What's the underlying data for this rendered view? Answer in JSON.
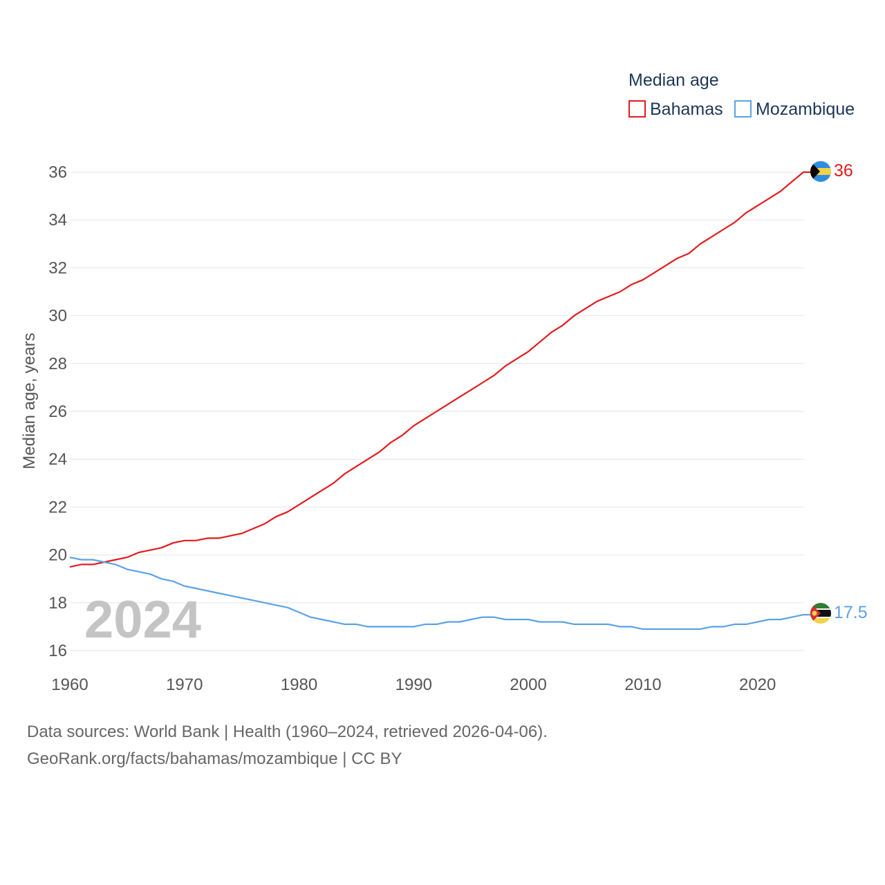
{
  "chart_data": {
    "type": "line",
    "title": "",
    "legend_title": "Median age",
    "legend_position": "top-right",
    "ylabel": "Median age, years",
    "xlabel": "",
    "xlim": [
      1960,
      2024
    ],
    "ylim": [
      16,
      36
    ],
    "x_ticks": [
      1960,
      1970,
      1980,
      1990,
      2000,
      2010,
      2020
    ],
    "y_ticks": [
      16,
      18,
      20,
      22,
      24,
      26,
      28,
      30,
      32,
      34,
      36
    ],
    "grid": true,
    "year_label": "2024",
    "x": [
      1960,
      1961,
      1962,
      1963,
      1964,
      1965,
      1966,
      1967,
      1968,
      1969,
      1970,
      1971,
      1972,
      1973,
      1974,
      1975,
      1976,
      1977,
      1978,
      1979,
      1980,
      1981,
      1982,
      1983,
      1984,
      1985,
      1986,
      1987,
      1988,
      1989,
      1990,
      1991,
      1992,
      1993,
      1994,
      1995,
      1996,
      1997,
      1998,
      1999,
      2000,
      2001,
      2002,
      2003,
      2004,
      2005,
      2006,
      2007,
      2008,
      2009,
      2010,
      2011,
      2012,
      2013,
      2014,
      2015,
      2016,
      2017,
      2018,
      2019,
      2020,
      2021,
      2022,
      2023,
      2024
    ],
    "series": [
      {
        "name": "Bahamas",
        "color": "#e41a1c",
        "end_label": "36",
        "flag": "bahamas-flag",
        "values": [
          19.5,
          19.6,
          19.6,
          19.7,
          19.8,
          19.9,
          20.1,
          20.2,
          20.3,
          20.5,
          20.6,
          20.6,
          20.7,
          20.7,
          20.8,
          20.9,
          21.1,
          21.3,
          21.6,
          21.8,
          22.1,
          22.4,
          22.7,
          23.0,
          23.4,
          23.7,
          24.0,
          24.3,
          24.7,
          25.0,
          25.4,
          25.7,
          26.0,
          26.3,
          26.6,
          26.9,
          27.2,
          27.5,
          27.9,
          28.2,
          28.5,
          28.9,
          29.3,
          29.6,
          30.0,
          30.3,
          30.6,
          30.8,
          31.0,
          31.3,
          31.5,
          31.8,
          32.1,
          32.4,
          32.6,
          33.0,
          33.3,
          33.6,
          33.9,
          34.3,
          34.6,
          34.9,
          35.2,
          35.6,
          36.0
        ]
      },
      {
        "name": "Mozambique",
        "color": "#5aa2e6",
        "end_label": "17.5",
        "flag": "mozambique-flag",
        "values": [
          19.9,
          19.8,
          19.8,
          19.7,
          19.6,
          19.4,
          19.3,
          19.2,
          19.0,
          18.9,
          18.7,
          18.6,
          18.5,
          18.4,
          18.3,
          18.2,
          18.1,
          18.0,
          17.9,
          17.8,
          17.6,
          17.4,
          17.3,
          17.2,
          17.1,
          17.1,
          17.0,
          17.0,
          17.0,
          17.0,
          17.0,
          17.1,
          17.1,
          17.2,
          17.2,
          17.3,
          17.4,
          17.4,
          17.3,
          17.3,
          17.3,
          17.2,
          17.2,
          17.2,
          17.1,
          17.1,
          17.1,
          17.1,
          17.0,
          17.0,
          16.9,
          16.9,
          16.9,
          16.9,
          16.9,
          16.9,
          17.0,
          17.0,
          17.1,
          17.1,
          17.2,
          17.3,
          17.3,
          17.4,
          17.5
        ]
      }
    ]
  },
  "footer": {
    "source_line": "Data sources: World Bank | Health (1960–2024, retrieved 2026-04-06).",
    "url_line": "GeoRank.org/facts/bahamas/mozambique | CC BY"
  }
}
